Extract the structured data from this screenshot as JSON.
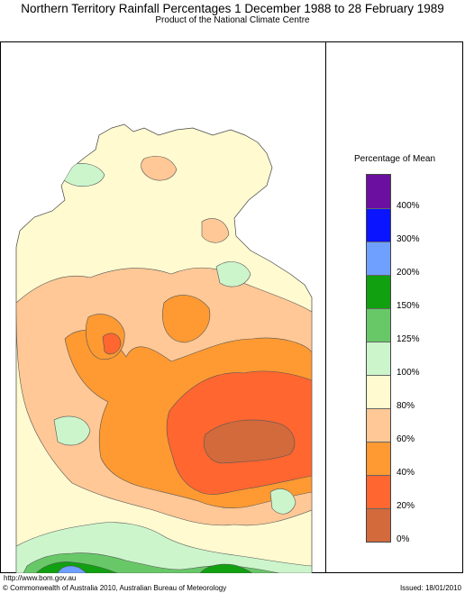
{
  "header": {
    "title": "Northern Territory Rainfall Percentages 1 December 1988 to 28 February 1989",
    "subtitle": "Product of the National Climate Centre"
  },
  "legend": {
    "title": "Percentage of Mean",
    "items": [
      {
        "label": "400%",
        "color": "#6a0fa0"
      },
      {
        "label": "300%",
        "color": "#0a14ff"
      },
      {
        "label": "200%",
        "color": "#6fa0ff"
      },
      {
        "label": "150%",
        "color": "#10a010"
      },
      {
        "label": "125%",
        "color": "#68c868"
      },
      {
        "label": "100%",
        "color": "#ccf5cc"
      },
      {
        "label": "80%",
        "color": "#fffad0"
      },
      {
        "label": "60%",
        "color": "#ffc896"
      },
      {
        "label": "40%",
        "color": "#ff9a32"
      },
      {
        "label": "20%",
        "color": "#ff6630"
      },
      {
        "label": "0%",
        "color": "#d26a3c"
      }
    ]
  },
  "map": {
    "region": "Northern Territory",
    "colors": {
      "below_20": "#d26a3c",
      "p20_40": "#ff6630",
      "p40_60": "#ff9a32",
      "p60_80": "#ffc896",
      "p80_100": "#fffad0",
      "p100_125": "#ccf5cc",
      "p125_150": "#68c868",
      "p150_200": "#10a010",
      "p200_300": "#6fa0ff",
      "ocean": "#ffffff"
    }
  },
  "footer": {
    "url": "http://www.bom.gov.au",
    "copyright": "© Commonwealth of Australia 2010, Australian Bureau of Meteorology",
    "issued": "Issued: 18/01/2010"
  }
}
